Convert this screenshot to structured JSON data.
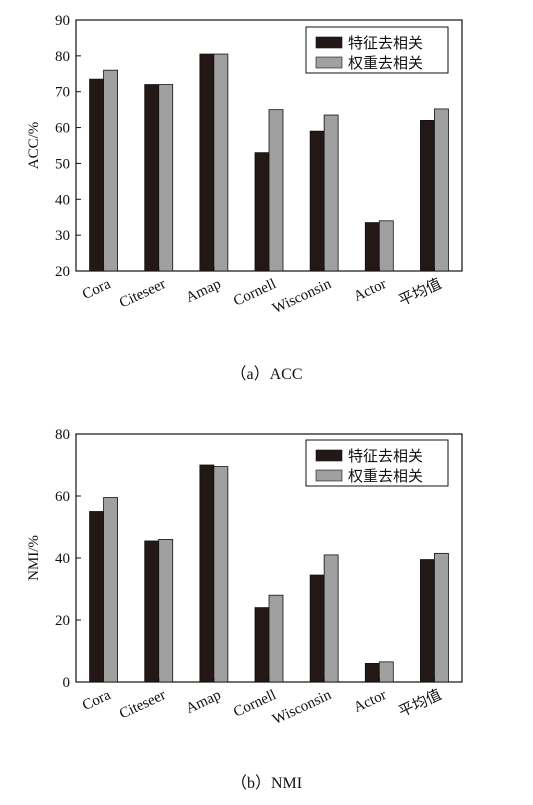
{
  "chart_data": [
    {
      "type": "bar",
      "caption": "（a）ACC",
      "ylabel": "ACC/%",
      "ylim": [
        20,
        90
      ],
      "yticks": [
        20,
        30,
        40,
        50,
        60,
        70,
        80,
        90
      ],
      "categories": [
        "Cora",
        "Citeseer",
        "Amap",
        "Cornell",
        "Wisconsin",
        "Actor",
        "平均值"
      ],
      "legend_position": "top-right",
      "series": [
        {
          "name": "特征去相关",
          "color": "#231815",
          "values": [
            73.5,
            72.0,
            80.5,
            53.0,
            59.0,
            33.5,
            62.0
          ]
        },
        {
          "name": "权重去相关",
          "color": "#a0a0a0",
          "values": [
            76.0,
            72.0,
            80.5,
            65.0,
            63.5,
            34.0,
            65.2
          ]
        }
      ]
    },
    {
      "type": "bar",
      "caption": "（b）NMI",
      "ylabel": "NMI/%",
      "ylim": [
        0,
        80
      ],
      "yticks": [
        0,
        20,
        40,
        60,
        80
      ],
      "categories": [
        "Cora",
        "Citeseer",
        "Amap",
        "Cornell",
        "Wisconsin",
        "Actor",
        "平均值"
      ],
      "legend_position": "top-right",
      "series": [
        {
          "name": "特征去相关",
          "color": "#231815",
          "values": [
            55.0,
            45.5,
            70.0,
            24.0,
            34.5,
            6.0,
            39.5
          ]
        },
        {
          "name": "权重去相关",
          "color": "#a0a0a0",
          "values": [
            59.5,
            46.0,
            69.5,
            28.0,
            41.0,
            6.5,
            41.5
          ]
        }
      ]
    }
  ]
}
